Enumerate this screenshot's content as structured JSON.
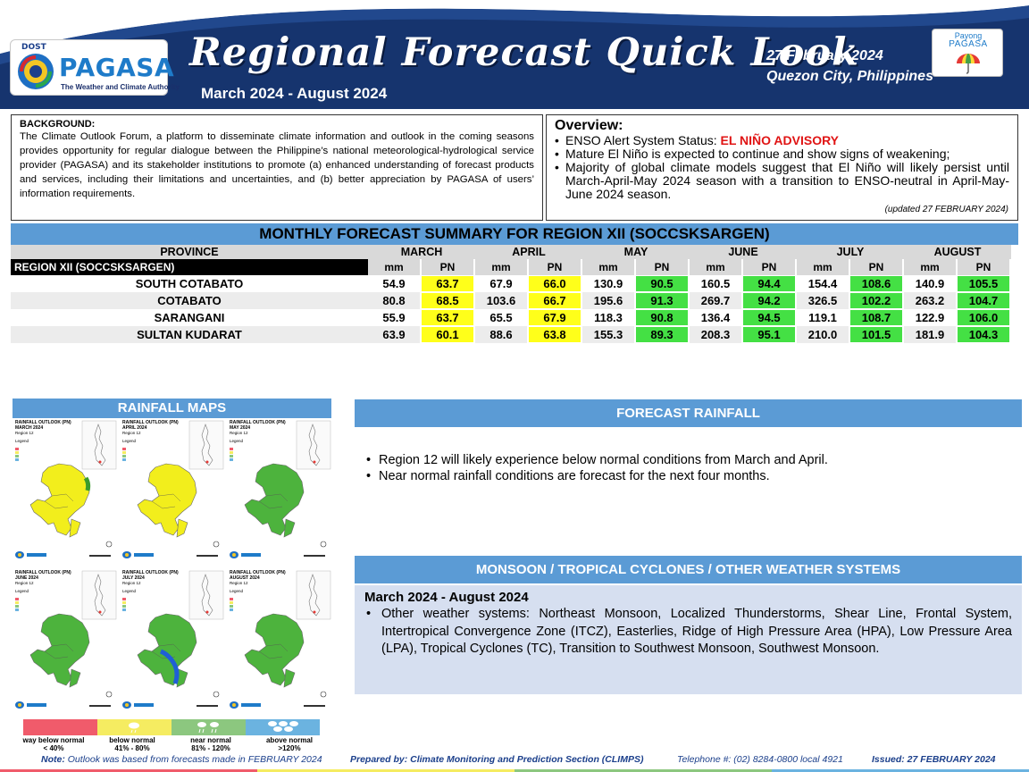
{
  "header": {
    "logo_dost": "DOST",
    "logo_name": "PAGASA",
    "logo_tagline": "The Weather and Climate Authority",
    "title": "Regional Forecast Quick Look",
    "period": "March 2024 - August 2024",
    "issue_date": "27 February 2024",
    "issue_place": "Quezon City, Philippines",
    "payong_line1": "Payong",
    "payong_line2": "PAGASA"
  },
  "background": {
    "title": "BACKGROUND:",
    "text": "The Climate Outlook Forum, a platform to disseminate climate information and outlook in the coming seasons provides opportunity for regular dialogue between the Philippine’s national meteorological-hydrological service provider (PAGASA) and its stakeholder institutions to promote (a) enhanced understanding of forecast products and services, including their limitations and uncertainties, and (b) better appreciation by PAGASA of users’ information requirements."
  },
  "overview": {
    "title": "Overview:",
    "enso_label": "ENSO Alert System Status: ",
    "enso_status": "EL NIÑO ADVISORY",
    "item2": "Mature El Niño is expected to continue and show signs of weakening;",
    "item3": "Majority of global climate models suggest that El Niño will likely persist until March-April-May 2024 season with a transition to ENSO-neutral in April-May-June 2024 season.",
    "updated": "(updated 27 FEBRUARY 2024)"
  },
  "table": {
    "title": "MONTHLY FORECAST SUMMARY FOR REGION XII (SOCCSKSARGEN)",
    "province_header": "PROVINCE",
    "region_label": "REGION XII (SOCCSKSARGEN)",
    "months": [
      "MARCH",
      "APRIL",
      "MAY",
      "JUNE",
      "JULY",
      "AUGUST"
    ],
    "mm_label": "mm",
    "pn_label": "PN",
    "rows": [
      {
        "province": "SOUTH COTABATO",
        "values": [
          [
            "54.9",
            "63.7"
          ],
          [
            "67.9",
            "66.0"
          ],
          [
            "130.9",
            "90.5"
          ],
          [
            "160.5",
            "94.4"
          ],
          [
            "154.4",
            "108.6"
          ],
          [
            "140.9",
            "105.5"
          ]
        ]
      },
      {
        "province": "COTABATO",
        "values": [
          [
            "80.8",
            "68.5"
          ],
          [
            "103.6",
            "66.7"
          ],
          [
            "195.6",
            "91.3"
          ],
          [
            "269.7",
            "94.2"
          ],
          [
            "326.5",
            "102.2"
          ],
          [
            "263.2",
            "104.7"
          ]
        ]
      },
      {
        "province": "SARANGANI",
        "values": [
          [
            "55.9",
            "63.7"
          ],
          [
            "65.5",
            "67.9"
          ],
          [
            "118.3",
            "90.8"
          ],
          [
            "136.4",
            "94.5"
          ],
          [
            "119.1",
            "108.7"
          ],
          [
            "122.9",
            "106.0"
          ]
        ]
      },
      {
        "province": "SULTAN KUDARAT",
        "values": [
          [
            "63.9",
            "60.1"
          ],
          [
            "88.6",
            "63.8"
          ],
          [
            "155.3",
            "89.3"
          ],
          [
            "208.3",
            "95.1"
          ],
          [
            "210.0",
            "101.5"
          ],
          [
            "181.9",
            "104.3"
          ]
        ]
      }
    ],
    "pn_colors": {
      "below": "#ffff1a",
      "near": "#44e044"
    }
  },
  "rainfall_maps": {
    "title": "RAINFALL MAPS",
    "map_title": "RAINFALL OUTLOOK (PN)",
    "map_region": "Region 12",
    "maps": [
      {
        "month": "MARCH 2024"
      },
      {
        "month": "APRIL 2024"
      },
      {
        "month": "MAY 2024"
      },
      {
        "month": "JUNE 2024"
      },
      {
        "month": "JULY 2024"
      },
      {
        "month": "AUGUST 2024"
      }
    ],
    "map_legend": "Legend",
    "legend": [
      {
        "label": "way below normal",
        "range": "< 40%",
        "color": "#f05b6b"
      },
      {
        "label": "below normal",
        "range": "41% - 80%",
        "color": "#f5ec61"
      },
      {
        "label": "near normal",
        "range": "81% - 120%",
        "color": "#8cc77f"
      },
      {
        "label": "above normal",
        "range": ">120%",
        "color": "#6bb3e0"
      }
    ]
  },
  "forecast_rainfall": {
    "title": "FORECAST RAINFALL",
    "items": [
      "Region 12 will likely experience below normal conditions from March and April.",
      "Near normal rainfall conditions are forecast for the next four months."
    ]
  },
  "monsoon": {
    "title": "MONSOON  / TROPICAL CYCLONES / OTHER WEATHER SYSTEMS",
    "period": "March 2024 - August 2024",
    "item": "Other weather systems: Northeast Monsoon, Localized Thunderstorms, Shear Line, Frontal System, Intertropical Convergence Zone (ITCZ), Easterlies, Ridge of High Pressure Area (HPA), Low Pressure Area (LPA), Tropical Cyclones (TC), Transition to Southwest Monsoon, Southwest Monsoon."
  },
  "footer": {
    "note_label": "Note:",
    "note": "Outlook was based from forecasts made in FEBRUARY 2024",
    "prepared": "Prepared by: Climate Monitoring and Prediction Section (CLIMPS)",
    "telephone": "Telephone #: (02) 8284-0800 local 4921",
    "issued": "Issued: 27 FEBRUARY 2024"
  }
}
